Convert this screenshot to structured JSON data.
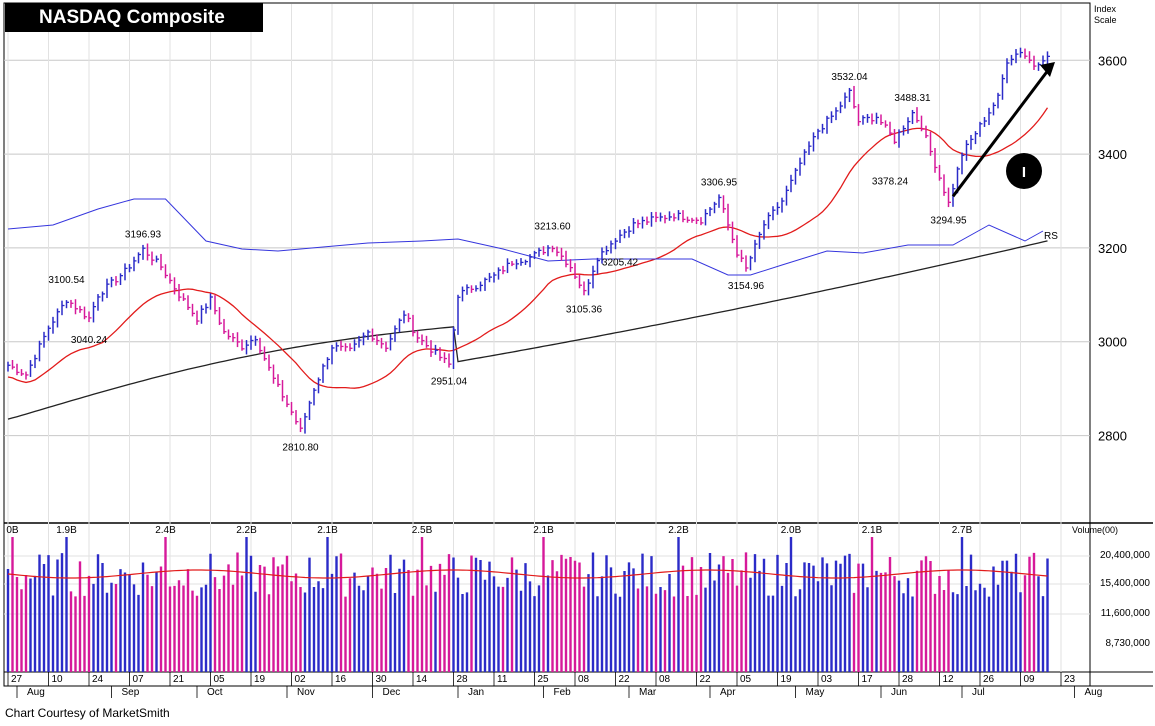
{
  "page": {
    "title": "NASDAQ Composite",
    "courtesy": "Chart Courtesy of MarketSmith"
  },
  "chart_data": {
    "type": "ohlc",
    "title": "NASDAQ Composite",
    "price_axis": {
      "label": [
        "Index",
        "Scale"
      ],
      "ticks": [
        2800,
        3000,
        3200,
        3400,
        3600
      ],
      "ylim": [
        2620,
        3720
      ]
    },
    "volume_axis": {
      "label": "Volume(00)",
      "ticks": [
        "20,400,000",
        "15,400,000",
        "11,600,000",
        "8,730,000"
      ]
    },
    "x_axis": {
      "day_ticks": [
        "27",
        "10",
        "24",
        "07",
        "21",
        "05",
        "19",
        "02",
        "16",
        "30",
        "14",
        "28",
        "11",
        "25",
        "08",
        "22",
        "08",
        "22",
        "05",
        "19",
        "03",
        "17",
        "28",
        "12",
        "26",
        "09",
        "23"
      ],
      "month_labels": [
        "Aug",
        "Sep",
        "Oct",
        "Nov",
        "Dec",
        "Jan",
        "Feb",
        "Mar",
        "Apr",
        "May",
        "Jun",
        "Jul",
        "Aug"
      ]
    },
    "price_path": [
      [
        0,
        2950
      ],
      [
        4,
        2930
      ],
      [
        9,
        3030
      ],
      [
        13,
        3090
      ],
      [
        18,
        3050
      ],
      [
        20,
        3100
      ],
      [
        26,
        3150
      ],
      [
        30,
        3197
      ],
      [
        34,
        3160
      ],
      [
        38,
        3100
      ],
      [
        42,
        3050
      ],
      [
        45,
        3090
      ],
      [
        48,
        3020
      ],
      [
        52,
        2990
      ],
      [
        55,
        3010
      ],
      [
        59,
        2920
      ],
      [
        63,
        2850
      ],
      [
        65,
        2811
      ],
      [
        68,
        2900
      ],
      [
        72,
        2990
      ],
      [
        76,
        2980
      ],
      [
        80,
        3020
      ],
      [
        84,
        2990
      ],
      [
        88,
        3060
      ],
      [
        91,
        3010
      ],
      [
        95,
        2975
      ],
      [
        98,
        2951
      ],
      [
        100,
        3100
      ],
      [
        104,
        3120
      ],
      [
        108,
        3140
      ],
      [
        112,
        3170
      ],
      [
        116,
        3180
      ],
      [
        121,
        3205
      ],
      [
        125,
        3160
      ],
      [
        128,
        3105
      ],
      [
        131,
        3180
      ],
      [
        135,
        3220
      ],
      [
        139,
        3250
      ],
      [
        143,
        3260
      ],
      [
        148,
        3270
      ],
      [
        154,
        3260
      ],
      [
        158,
        3307
      ],
      [
        162,
        3190
      ],
      [
        164,
        3155
      ],
      [
        168,
        3250
      ],
      [
        172,
        3300
      ],
      [
        176,
        3380
      ],
      [
        180,
        3450
      ],
      [
        184,
        3490
      ],
      [
        187,
        3532
      ],
      [
        189,
        3470
      ],
      [
        193,
        3480
      ],
      [
        197,
        3430
      ],
      [
        201,
        3488
      ],
      [
        203,
        3460
      ],
      [
        206,
        3378
      ],
      [
        209,
        3295
      ],
      [
        212,
        3400
      ],
      [
        216,
        3460
      ],
      [
        220,
        3520
      ],
      [
        222,
        3600
      ],
      [
        225,
        3620
      ],
      [
        228,
        3590
      ],
      [
        230,
        3605
      ]
    ],
    "annotations": [
      {
        "text": "3100.54",
        "i": 13,
        "y": 3100,
        "pos": "above"
      },
      {
        "text": "3040.24",
        "i": 18,
        "y": 3040,
        "pos": "below"
      },
      {
        "text": "3196.93",
        "i": 30,
        "y": 3197,
        "pos": "above"
      },
      {
        "text": "2810.80",
        "i": 65,
        "y": 2811,
        "pos": "below"
      },
      {
        "text": "2951.04",
        "i": 98,
        "y": 2951,
        "pos": "below"
      },
      {
        "text": "3213.60",
        "i": 121,
        "y": 3214,
        "pos": "above"
      },
      {
        "text": "3205.42",
        "i": 136,
        "y": 3205,
        "pos": "below"
      },
      {
        "text": "3105.36",
        "i": 128,
        "y": 3105,
        "pos": "below"
      },
      {
        "text": "3306.95",
        "i": 158,
        "y": 3307,
        "pos": "above"
      },
      {
        "text": "3154.96",
        "i": 164,
        "y": 3155,
        "pos": "below"
      },
      {
        "text": "3532.04",
        "i": 187,
        "y": 3532,
        "pos": "above"
      },
      {
        "text": "3488.31",
        "i": 201,
        "y": 3488,
        "pos": "above"
      },
      {
        "text": "3378.24",
        "i": 196,
        "y": 3378,
        "pos": "below"
      },
      {
        "text": "3294.95",
        "i": 209,
        "y": 3295,
        "pos": "below"
      }
    ],
    "volume_labels": [
      {
        "text": "0B",
        "i": 1
      },
      {
        "text": "1.9B",
        "i": 13
      },
      {
        "text": "2.4B",
        "i": 35
      },
      {
        "text": "2.2B",
        "i": 53
      },
      {
        "text": "2.1B",
        "i": 71
      },
      {
        "text": "2.5B",
        "i": 92
      },
      {
        "text": "2.1B",
        "i": 119
      },
      {
        "text": "2.2B",
        "i": 149
      },
      {
        "text": "2.0B",
        "i": 174
      },
      {
        "text": "2.1B",
        "i": 192
      },
      {
        "text": "2.7B",
        "i": 212
      }
    ],
    "rs_label": "RS",
    "stage_marker": "I",
    "colors": {
      "up": "#2b2bc8",
      "down": "#d6199a",
      "ma50": "#e21b1b",
      "ma200": "#222222",
      "rs": "#3535dd",
      "vol_avg": "#e21b1b",
      "grid": "#c8c8c8"
    }
  }
}
